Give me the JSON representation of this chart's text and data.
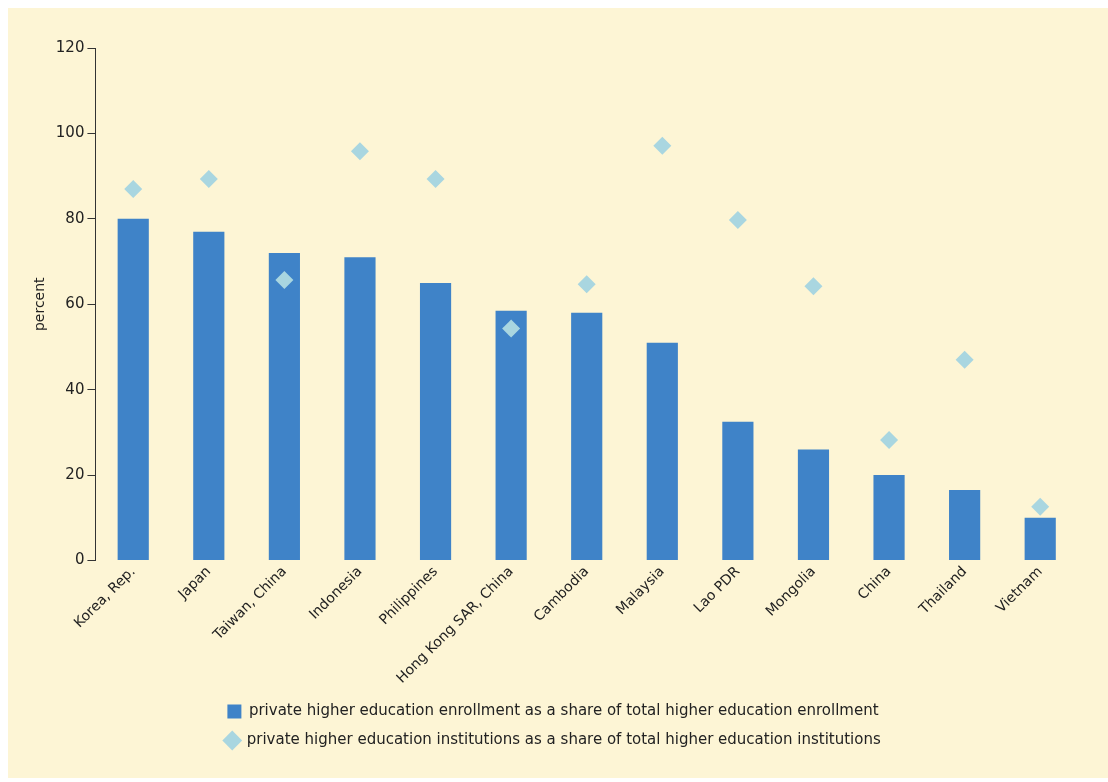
{
  "chart_data": {
    "type": "bar",
    "ylabel": "percent",
    "categories": [
      "Korea, Rep.",
      "Japan",
      "Taiwan, China",
      "Indonesia",
      "Philippines",
      "Hong Kong SAR, China",
      "Cambodia",
      "Malaysia",
      "Lao PDR",
      "Mongolia",
      "China",
      "Thailand",
      "Vietnam"
    ],
    "series": [
      {
        "name": "private higher education enrollment as a share of total higher education enrollment",
        "color": "#3f83c8",
        "values": [
          80,
          77,
          72,
          71,
          65,
          58.5,
          58,
          51,
          32.5,
          26,
          20,
          16.5,
          10
        ]
      },
      {
        "name": "private higher education institutions as a share of total higher education institutions",
        "type": "scatter",
        "marker": "diamond",
        "color": "#a9d6e0",
        "x": [
          "Korea, Rep.",
          "Japan",
          "Taiwan, China",
          "Indonesia",
          "Philippines",
          "Hong Kong SAR, China",
          "Cambodia",
          "Malaysia",
          "Lao PDR",
          "Mongolia",
          "China",
          "Thailand",
          "Vietnam"
        ],
        "values": [
          87,
          89.3,
          65.7,
          95.8,
          89.3,
          54.3,
          64.7,
          97.1,
          79.7,
          64.2,
          28.2,
          47,
          12.6
        ]
      }
    ],
    "ylim": [
      0,
      120
    ],
    "yticks": [
      0,
      20,
      40,
      60,
      80,
      100,
      120
    ],
    "grid": false,
    "legend": "bottom"
  }
}
